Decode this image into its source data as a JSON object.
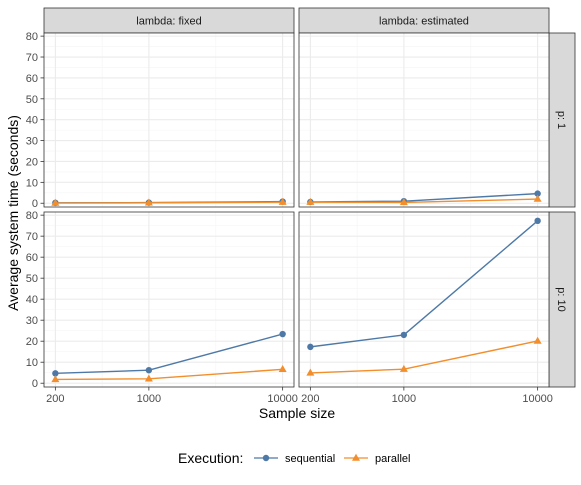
{
  "colors": {
    "sequential": "#4e79a7",
    "parallel": "#f28e2b",
    "strip_bg": "#d9d9d9",
    "grid_major": "#ebebeb",
    "grid_minor": "#f5f5f5",
    "panel_border": "#333333"
  },
  "chart_data": {
    "type": "line",
    "xlabel": "Sample size",
    "ylabel": "Average system time (seconds)",
    "x_scale": "log",
    "x_ticks": [
      200,
      1000,
      10000
    ],
    "x_tick_labels": [
      "200",
      "1000",
      "10000"
    ],
    "y_ticks": [
      0,
      10,
      20,
      30,
      40,
      50,
      60,
      70,
      80
    ],
    "y_tick_labels": [
      "0",
      "10",
      "20",
      "30",
      "40",
      "50",
      "60",
      "70",
      "80"
    ],
    "ylim": [
      -1.8,
      81.5
    ],
    "col_labels": [
      "lambda: fixed",
      "lambda: estimated"
    ],
    "row_labels": [
      "p: 1",
      "p: 10"
    ],
    "legend": {
      "title": "Execution:",
      "position": "bottom",
      "entries": [
        "sequential",
        "parallel"
      ]
    },
    "panels": [
      {
        "col": "lambda: fixed",
        "row": "p: 1",
        "series": [
          {
            "name": "sequential",
            "marker": "circle",
            "x": [
              200,
              1000,
              10000
            ],
            "y": [
              0.2,
              0.3,
              0.8
            ]
          },
          {
            "name": "parallel",
            "marker": "triangle",
            "x": [
              200,
              1000,
              10000
            ],
            "y": [
              0.1,
              0.2,
              0.5
            ]
          }
        ]
      },
      {
        "col": "lambda: estimated",
        "row": "p: 1",
        "series": [
          {
            "name": "sequential",
            "marker": "circle",
            "x": [
              200,
              1000,
              10000
            ],
            "y": [
              0.6,
              1.0,
              4.6
            ]
          },
          {
            "name": "parallel",
            "marker": "triangle",
            "x": [
              200,
              1000,
              10000
            ],
            "y": [
              0.5,
              0.4,
              2.0
            ]
          }
        ]
      },
      {
        "col": "lambda: fixed",
        "row": "p: 10",
        "series": [
          {
            "name": "sequential",
            "marker": "circle",
            "x": [
              200,
              1000,
              10000
            ],
            "y": [
              4.7,
              6.2,
              23.4
            ]
          },
          {
            "name": "parallel",
            "marker": "triangle",
            "x": [
              200,
              1000,
              10000
            ],
            "y": [
              1.8,
              2.1,
              6.6
            ]
          }
        ]
      },
      {
        "col": "lambda: estimated",
        "row": "p: 10",
        "series": [
          {
            "name": "sequential",
            "marker": "circle",
            "x": [
              200,
              1000,
              10000
            ],
            "y": [
              17.3,
              23.0,
              77.3
            ]
          },
          {
            "name": "parallel",
            "marker": "triangle",
            "x": [
              200,
              1000,
              10000
            ],
            "y": [
              4.9,
              6.7,
              20.1
            ]
          }
        ]
      }
    ]
  }
}
